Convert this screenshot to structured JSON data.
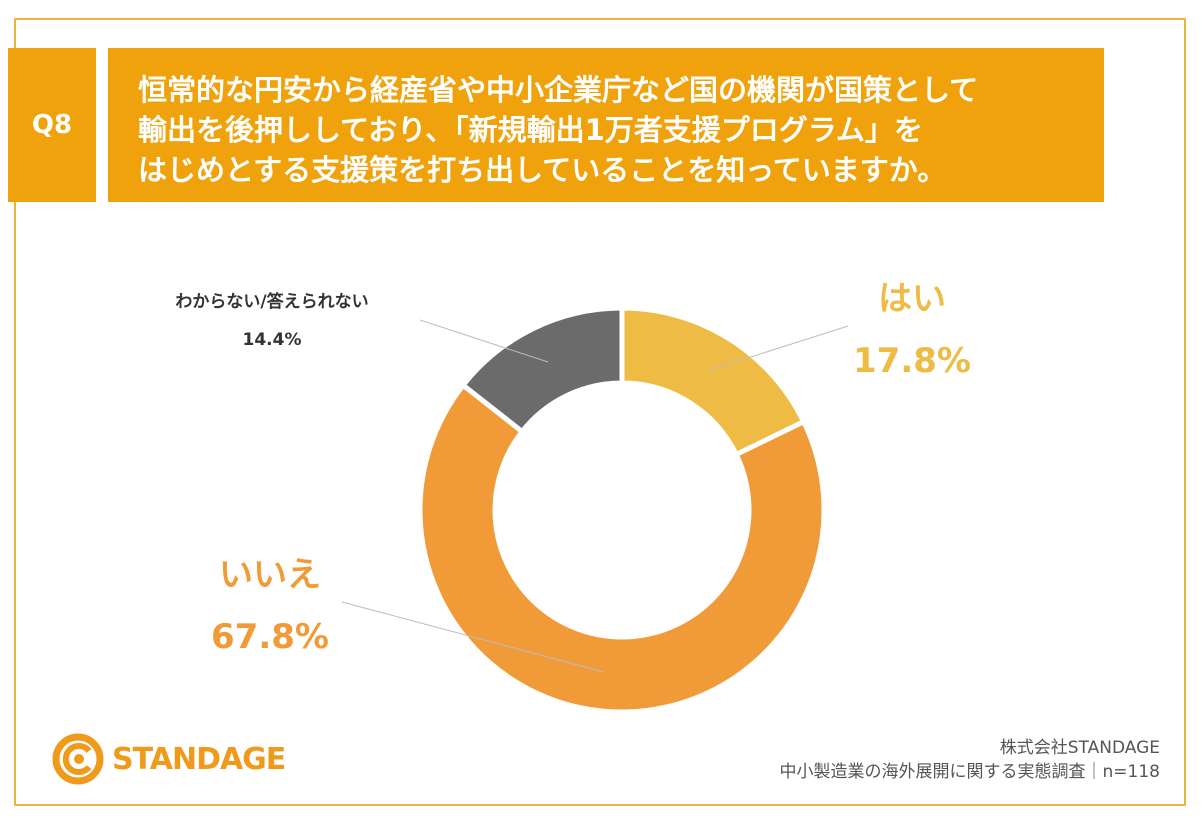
{
  "question": {
    "number": "Q8",
    "lines": [
      "恒常的な円安から経産省や中小企業庁など国の機関が国策として",
      "輸出を後押ししており、「新規輸出1万者支援プログラム」を",
      "はじめとする支援策を打ち出していることを知っていますか。"
    ]
  },
  "chart_data": {
    "type": "pie",
    "variant": "donut",
    "labels": [
      "はい",
      "いいえ",
      "わからない/答えられない"
    ],
    "values": [
      17.8,
      67.8,
      14.4
    ],
    "value_labels": [
      "17.8%",
      "67.8%",
      "14.4%"
    ],
    "colors": [
      "#eebb45",
      "#f09b38",
      "#6b6b6b"
    ]
  },
  "footer": {
    "logo_text": "STANDAGE",
    "company": "株式会社STANDAGE",
    "survey": "中小製造業の海外展開に関する実態調査｜n=118"
  }
}
